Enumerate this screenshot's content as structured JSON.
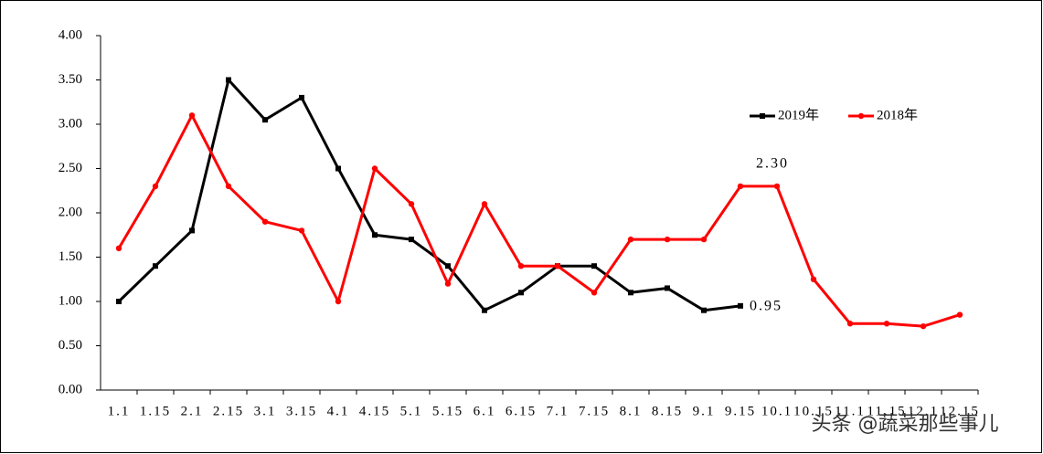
{
  "chart_data": {
    "type": "line",
    "categories": [
      "1.1",
      "1.15",
      "2.1",
      "2.15",
      "3.1",
      "3.15",
      "4.1",
      "4.15",
      "5.1",
      "5.15",
      "6.1",
      "6.15",
      "7.1",
      "7.15",
      "8.1",
      "8.15",
      "9.1",
      "9.15",
      "10.1",
      "10.15",
      "11.1",
      "11.15",
      "12.1",
      "12.15"
    ],
    "series": [
      {
        "name": "2019年",
        "color": "#000000",
        "marker": "square",
        "values": [
          1.0,
          1.4,
          1.8,
          3.5,
          3.05,
          3.3,
          2.5,
          1.75,
          1.7,
          1.4,
          0.9,
          1.1,
          1.4,
          1.4,
          1.1,
          1.15,
          0.9,
          0.95,
          null,
          null,
          null,
          null,
          null,
          null
        ],
        "value_labels": [
          null,
          null,
          null,
          null,
          null,
          null,
          null,
          null,
          null,
          null,
          null,
          null,
          null,
          null,
          null,
          null,
          null,
          "0.95",
          null,
          null,
          null,
          null,
          null,
          null
        ]
      },
      {
        "name": "2018年",
        "color": "#ff0000",
        "marker": "circle",
        "values": [
          1.6,
          2.3,
          3.1,
          2.3,
          1.9,
          1.8,
          1.0,
          2.5,
          2.1,
          1.2,
          2.1,
          1.4,
          1.4,
          1.1,
          1.7,
          1.7,
          1.7,
          2.3,
          2.3,
          1.25,
          0.75,
          0.75,
          0.72,
          0.85
        ],
        "value_labels": [
          null,
          null,
          null,
          null,
          null,
          null,
          null,
          null,
          null,
          null,
          null,
          null,
          null,
          null,
          null,
          null,
          null,
          null,
          "2.30",
          null,
          null,
          null,
          null,
          null
        ]
      }
    ],
    "ylim": [
      0,
      4
    ],
    "yticks": [
      {
        "value": 0,
        "label": "0.00"
      },
      {
        "value": 0.5,
        "label": "0.50"
      },
      {
        "value": 1,
        "label": "1.00"
      },
      {
        "value": 1.5,
        "label": "1.50"
      },
      {
        "value": 2,
        "label": "2.00"
      },
      {
        "value": 2.5,
        "label": "2.50"
      },
      {
        "value": 3,
        "label": "3.00"
      },
      {
        "value": 3.5,
        "label": "3.50"
      },
      {
        "value": 4,
        "label": "4.00"
      }
    ],
    "legend": "upper right",
    "watermark": "头条 @蔬菜那些事儿"
  }
}
